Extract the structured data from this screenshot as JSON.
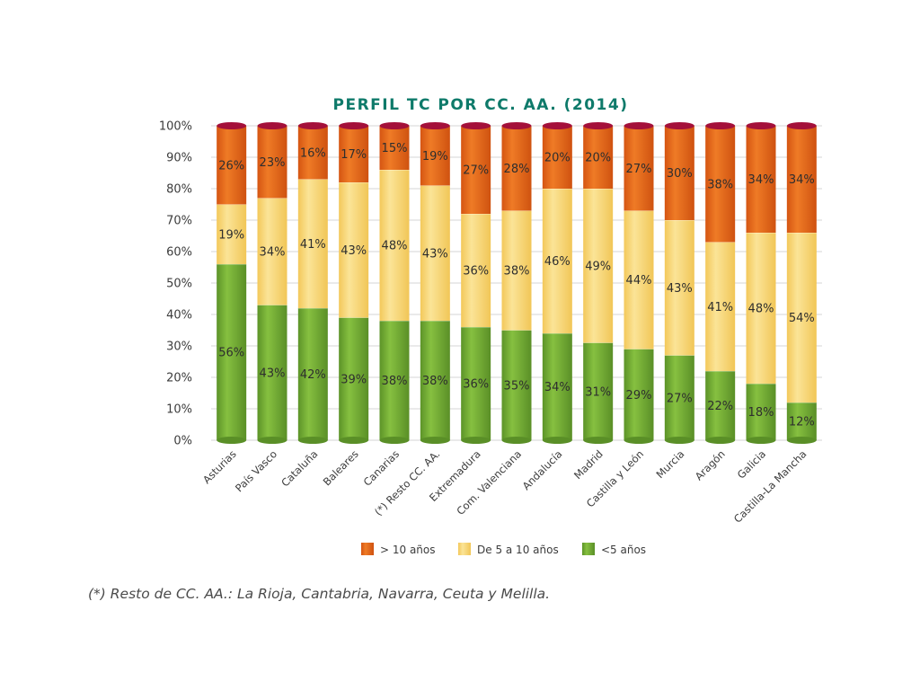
{
  "chart_data": {
    "type": "bar",
    "stacked": true,
    "title": "PERFIL TC POR CC. AA. (2014)",
    "title_color": "#0e7a6a",
    "ylim": [
      0,
      100
    ],
    "yticks": [
      "0%",
      "10%",
      "20%",
      "30%",
      "40%",
      "50%",
      "60%",
      "70%",
      "80%",
      "90%",
      "100%"
    ],
    "grid": true,
    "legend_position": "bottom",
    "categories": [
      "Asturias",
      "País Vasco",
      "Cataluña",
      "Baleares",
      "Canarias",
      "(*) Resto CC. AA.",
      "Extremadura",
      "Com. Valenciana",
      "Andalucía",
      "Madrid",
      "Castilla y León",
      "Murcia",
      "Aragón",
      "Galicia",
      "Castilla-La Mancha"
    ],
    "series": [
      {
        "name": "<5 años",
        "color": "#6ea832",
        "values": [
          56,
          43,
          42,
          39,
          38,
          38,
          36,
          35,
          34,
          31,
          29,
          27,
          22,
          18,
          12
        ],
        "labels": [
          "56%",
          "43%",
          "42%",
          "39%",
          "38%",
          "38%",
          "36%",
          "35%",
          "34%",
          "31%",
          "29%",
          "27%",
          "22%",
          "18%",
          "12%"
        ]
      },
      {
        "name": "De 5 a 10 años",
        "color": "#f7d36c",
        "values": [
          19,
          34,
          41,
          43,
          48,
          43,
          36,
          38,
          46,
          49,
          44,
          43,
          41,
          48,
          54
        ],
        "labels": [
          "19%",
          "34%",
          "41%",
          "43%",
          "48%",
          "43%",
          "36%",
          "38%",
          "46%",
          "49%",
          "44%",
          "43%",
          "41%",
          "48%",
          "54%"
        ]
      },
      {
        "name": "> 10 años",
        "color": "#e0651a",
        "values": [
          26,
          23,
          16,
          17,
          15,
          19,
          27,
          28,
          20,
          20,
          27,
          30,
          38,
          34,
          34
        ],
        "labels": [
          "26%",
          "23%",
          "16%",
          "17%",
          "15%",
          "19%",
          "27%",
          "28%",
          "20%",
          "20%",
          "27%",
          "30%",
          "38%",
          "34%",
          "34%"
        ]
      }
    ],
    "legend": [
      "> 10 años",
      "De 5 a 10 años",
      "<5 años"
    ]
  },
  "footnote": "(*) Resto de CC. AA.: La Rioja, Cantabria, Navarra, Ceuta y Melilla."
}
